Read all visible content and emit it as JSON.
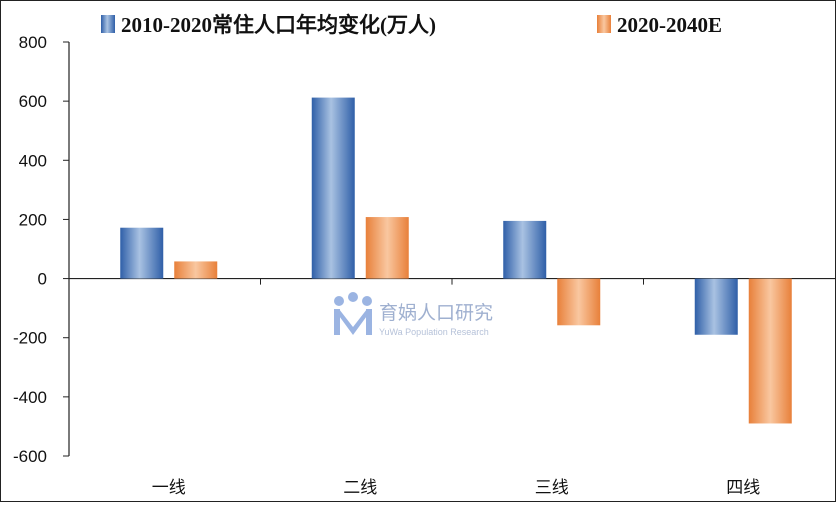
{
  "chart_data": {
    "type": "bar",
    "categories": [
      "一线",
      "二线",
      "三线",
      "四线"
    ],
    "series": [
      {
        "name": "2010-2020常住人口年均变化(万人)",
        "values": [
          172,
          612,
          195,
          -190
        ],
        "color": "#4a7fc1"
      },
      {
        "name": "2020-2040E",
        "values": [
          58,
          208,
          -158,
          -490
        ],
        "color": "#ef9350"
      }
    ],
    "ylim": [
      -600,
      800
    ],
    "yticks": [
      800,
      600,
      400,
      200,
      0,
      -200,
      -400,
      -600
    ],
    "grid": false,
    "legend": "top"
  },
  "watermark": {
    "name": "育娲人口研究",
    "subtitle": "YuWa Population Research"
  }
}
